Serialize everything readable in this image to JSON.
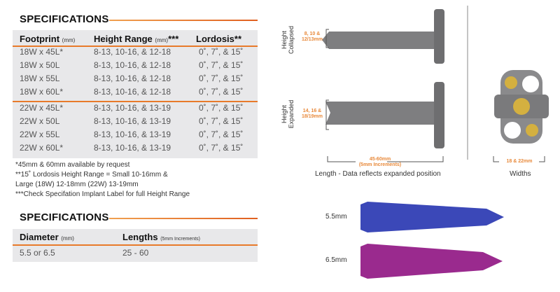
{
  "cage_specs": {
    "title": "SPECIFICATIONS",
    "headers": [
      {
        "label": "Footprint",
        "unit": "(mm)",
        "suffix": ""
      },
      {
        "label": "Height Range",
        "unit": "(mm)",
        "suffix": "***"
      },
      {
        "label": "Lordosis**",
        "unit": "",
        "suffix": ""
      }
    ],
    "rows": [
      [
        "18W x 45L*",
        "8-13, 10-16, & 12-18",
        "0˚, 7˚, & 15˚"
      ],
      [
        "18W x 50L",
        "8-13, 10-16, & 12-18",
        "0˚, 7˚, & 15˚"
      ],
      [
        "18W x 55L",
        "8-13, 10-16, & 12-18",
        "0˚, 7˚, & 15˚"
      ],
      [
        "18W x 60L*",
        "8-13, 10-16, & 12-18",
        "0˚, 7˚, & 15˚"
      ],
      [
        "22W x 45L*",
        "8-13, 10-16, & 13-19",
        "0˚, 7˚, & 15˚"
      ],
      [
        "22W x 50L",
        "8-13, 10-16, & 13-19",
        "0˚, 7˚, & 15˚"
      ],
      [
        "22W x 55L",
        "8-13, 10-16, & 13-19",
        "0˚, 7˚, & 15˚"
      ],
      [
        "22W x 60L*",
        "8-13, 10-16, & 13-19",
        "0˚, 7˚, & 15˚"
      ]
    ],
    "notes": [
      "*45mm & 60mm available by request",
      "**15˚ Lordosis Height Range = Small 10-16mm &",
      "Large (18W) 12-18mm (22W) 13-19mm",
      "***Check Specifation Implant Label for full Height Range"
    ]
  },
  "screw_specs": {
    "title": "SPECIFICATIONS",
    "headers": [
      {
        "label": "Diameter",
        "unit": "(mm)"
      },
      {
        "label": "Lengths",
        "unit": "(5mm Increments)"
      }
    ],
    "rows": [
      [
        "5.5 or 6.5",
        "25 - 60"
      ]
    ]
  },
  "figures": {
    "collapsed_label": "Height Collapsed",
    "collapsed_dims": "8, 10 & 12/13mm",
    "expanded_label": "Height Expanded",
    "expanded_dims": "14, 16 & 18/19mm",
    "length_dims": "45-60mm",
    "length_increments": "(5mm Increments)",
    "length_caption": "Length - Data reflects expanded position",
    "width_dims": "18 & 22mm",
    "width_caption": "Widths",
    "screw_small": "5.5mm",
    "screw_large": "6.5mm",
    "colors": {
      "accent": "#e8893a",
      "screw_small": "#3b48b8",
      "screw_large": "#9a2a8e",
      "implant": "#7a7a7a",
      "gold": "#d4b040"
    }
  }
}
